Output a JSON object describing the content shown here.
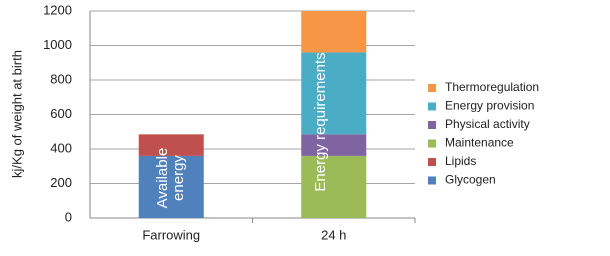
{
  "chart_data": {
    "type": "stacked_bar",
    "y_label": "kj/Kg of weight at birth",
    "categories": [
      "Farrowing",
      "24 h"
    ],
    "series": [
      {
        "name": "Glycogen",
        "color": "#4f81bd",
        "values": [
          360,
          null
        ]
      },
      {
        "name": "Lipids",
        "color": "#c0504d",
        "values": [
          125,
          null
        ]
      },
      {
        "name": "Maintenance",
        "color": "#9bbb59",
        "values": [
          null,
          360
        ]
      },
      {
        "name": "Physical activity",
        "color": "#8064a2",
        "values": [
          null,
          125
        ]
      },
      {
        "name": "Energy provision",
        "color": "#4bacc6",
        "values": [
          null,
          475
        ]
      },
      {
        "name": "Thermoregulation",
        "color": "#f79646",
        "values": [
          null,
          240
        ]
      }
    ],
    "annotations": [
      "Available energy",
      "Energy requirements"
    ],
    "ylim": [
      0,
      1200
    ],
    "yticks": [
      0,
      200,
      400,
      600,
      800,
      1000,
      1200
    ],
    "grid": true,
    "legend": "right"
  }
}
